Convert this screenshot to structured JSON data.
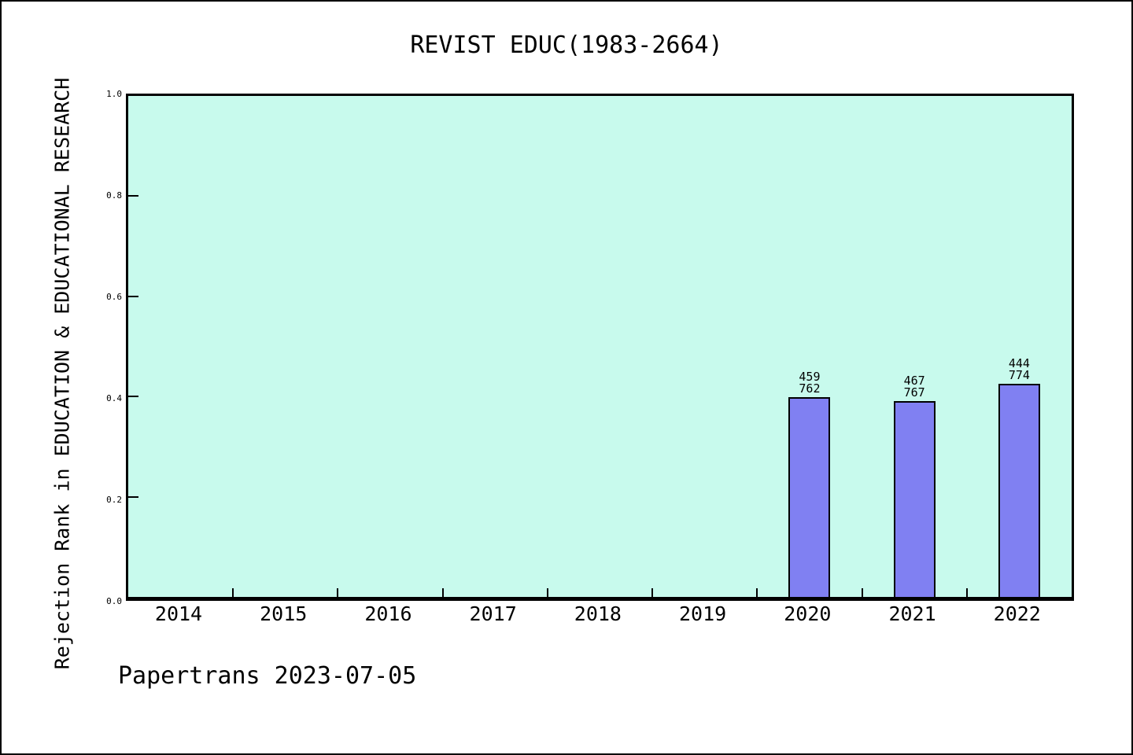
{
  "page": {
    "title": "REVIST EDUC(1983-2664)",
    "footer": "Papertrans 2023-07-05"
  },
  "chart_data": {
    "type": "bar",
    "title": "REVIST EDUC(1983-2664)",
    "xlabel": "",
    "ylabel": "Rejection Rank in EDUCATION & EDUCATIONAL RESEARCH",
    "categories": [
      "2014",
      "2015",
      "2016",
      "2017",
      "2018",
      "2019",
      "2020",
      "2021",
      "2022"
    ],
    "series": [
      {
        "name": "Rejection Rank",
        "values": [
          null,
          null,
          null,
          null,
          null,
          null,
          0.398,
          0.391,
          0.426
        ]
      }
    ],
    "bar_labels": [
      null,
      null,
      null,
      null,
      null,
      null,
      "459\n762",
      "467\n767",
      "444\n774"
    ],
    "annotations": [
      {
        "category": "2020",
        "numerator": 459,
        "denominator": 762
      },
      {
        "category": "2021",
        "numerator": 467,
        "denominator": 767
      },
      {
        "category": "2022",
        "numerator": 444,
        "denominator": 774
      }
    ],
    "ylim": [
      0,
      1
    ],
    "yticks": [
      0.0,
      0.2,
      0.4,
      0.6,
      0.8,
      1.0
    ],
    "ytick_labels": [
      "0.0",
      "0.2",
      "0.4",
      "0.6",
      "0.8",
      "1.0"
    ],
    "grid": false,
    "legend": null,
    "footer": "Papertrans 2023-07-05",
    "colors": {
      "bar_fill": "#8080f2",
      "bar_border": "#000000",
      "plot_background": "#c8faed",
      "plot_border": "#000000",
      "page_background": "#ffffff",
      "text": "#000000"
    }
  }
}
